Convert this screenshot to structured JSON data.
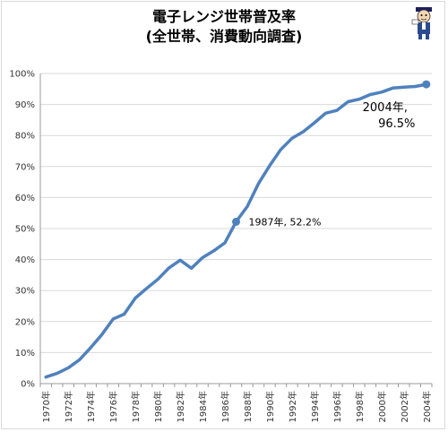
{
  "title": {
    "line1": "電子レンジ世帯普及率",
    "line2": "(全世帯、消費動向調査)"
  },
  "mascot_icon": "mascot-character-icon",
  "chart_data": {
    "type": "line",
    "x": [
      "1970年",
      "1971年",
      "1972年",
      "1973年",
      "1974年",
      "1975年",
      "1976年",
      "1977年",
      "1978年",
      "1979年",
      "1980年",
      "1981年",
      "1982年",
      "1983年",
      "1984年",
      "1985年",
      "1986年",
      "1987年",
      "1988年",
      "1989年",
      "1990年",
      "1991年",
      "1992年",
      "1993年",
      "1994年",
      "1995年",
      "1996年",
      "1997年",
      "1998年",
      "1999年",
      "2000年",
      "2001年",
      "2002年",
      "2003年",
      "2004年"
    ],
    "x_tick_labels": [
      "1970年",
      "1972年",
      "1974年",
      "1976年",
      "1978年",
      "1980年",
      "1982年",
      "1984年",
      "1986年",
      "1988年",
      "1990年",
      "1992年",
      "1994年",
      "1996年",
      "1998年",
      "2000年",
      "2002年",
      "2004年"
    ],
    "series": [
      {
        "values": [
          2.1,
          3.3,
          5.1,
          7.7,
          11.6,
          15.8,
          20.8,
          22.4,
          27.6,
          30.7,
          33.6,
          37.3,
          39.8,
          37.2,
          40.6,
          42.8,
          45.4,
          52.2,
          57.1,
          64.5,
          70.3,
          75.5,
          79.1,
          81.2,
          84.1,
          87.2,
          88.1,
          90.9,
          91.7,
          93.2,
          94.0,
          95.3,
          95.6,
          95.8,
          96.5
        ],
        "color": "#4f81bd"
      }
    ],
    "ylim": [
      0,
      100
    ],
    "y_ticks": [
      "0%",
      "10%",
      "20%",
      "30%",
      "40%",
      "50%",
      "60%",
      "70%",
      "80%",
      "90%",
      "100%"
    ],
    "grid": true,
    "annotations": [
      {
        "index": 17,
        "text": "1987年, 52.2%"
      },
      {
        "index": 34,
        "line1": "2004年,",
        "line2": "96.5%"
      }
    ]
  }
}
